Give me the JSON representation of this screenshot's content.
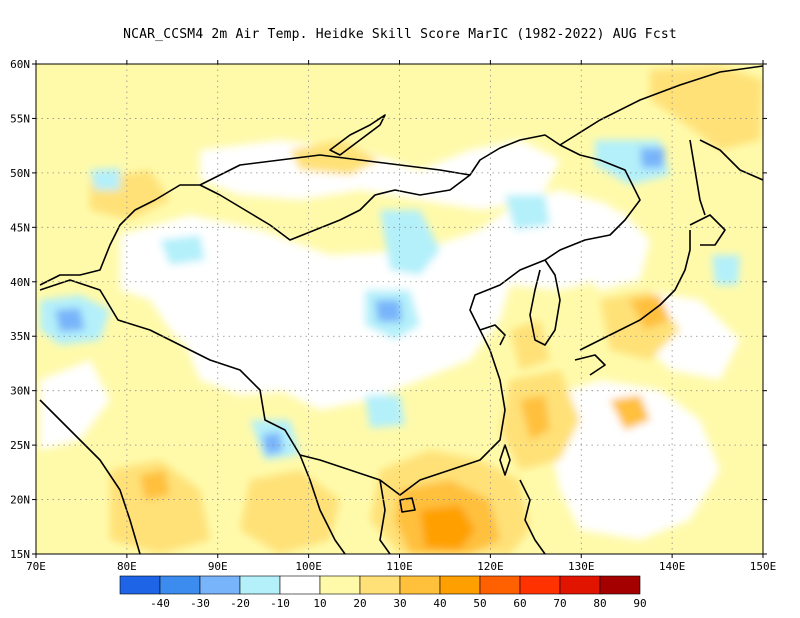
{
  "title": "NCAR_CCSM4  2m Air Temp. Heidke Skill Score MarIC (1982-2022) AUG Fcst",
  "map": {
    "lon_labels": [
      "70E",
      "80E",
      "90E",
      "100E",
      "110E",
      "120E",
      "130E",
      "140E",
      "150E"
    ],
    "lat_labels": [
      "15N",
      "20N",
      "25N",
      "30N",
      "35N",
      "40N",
      "45N",
      "50N",
      "55N",
      "60N"
    ],
    "lon_range": [
      70,
      150
    ],
    "lat_range": [
      15,
      60
    ],
    "gridlines": true
  },
  "legend": {
    "labels": [
      "-40",
      "-30",
      "-20",
      "-10",
      "10",
      "20",
      "30",
      "40",
      "50",
      "60",
      "70",
      "80",
      "90"
    ],
    "colors": [
      "#1e64e6",
      "#3c8cf0",
      "#78b4fa",
      "#b4f0fa",
      "#ffffff",
      "#fffaaa",
      "#ffe178",
      "#ffc03c",
      "#ffa000",
      "#ff6000",
      "#ff3200",
      "#e11400",
      "#a50000"
    ]
  }
}
